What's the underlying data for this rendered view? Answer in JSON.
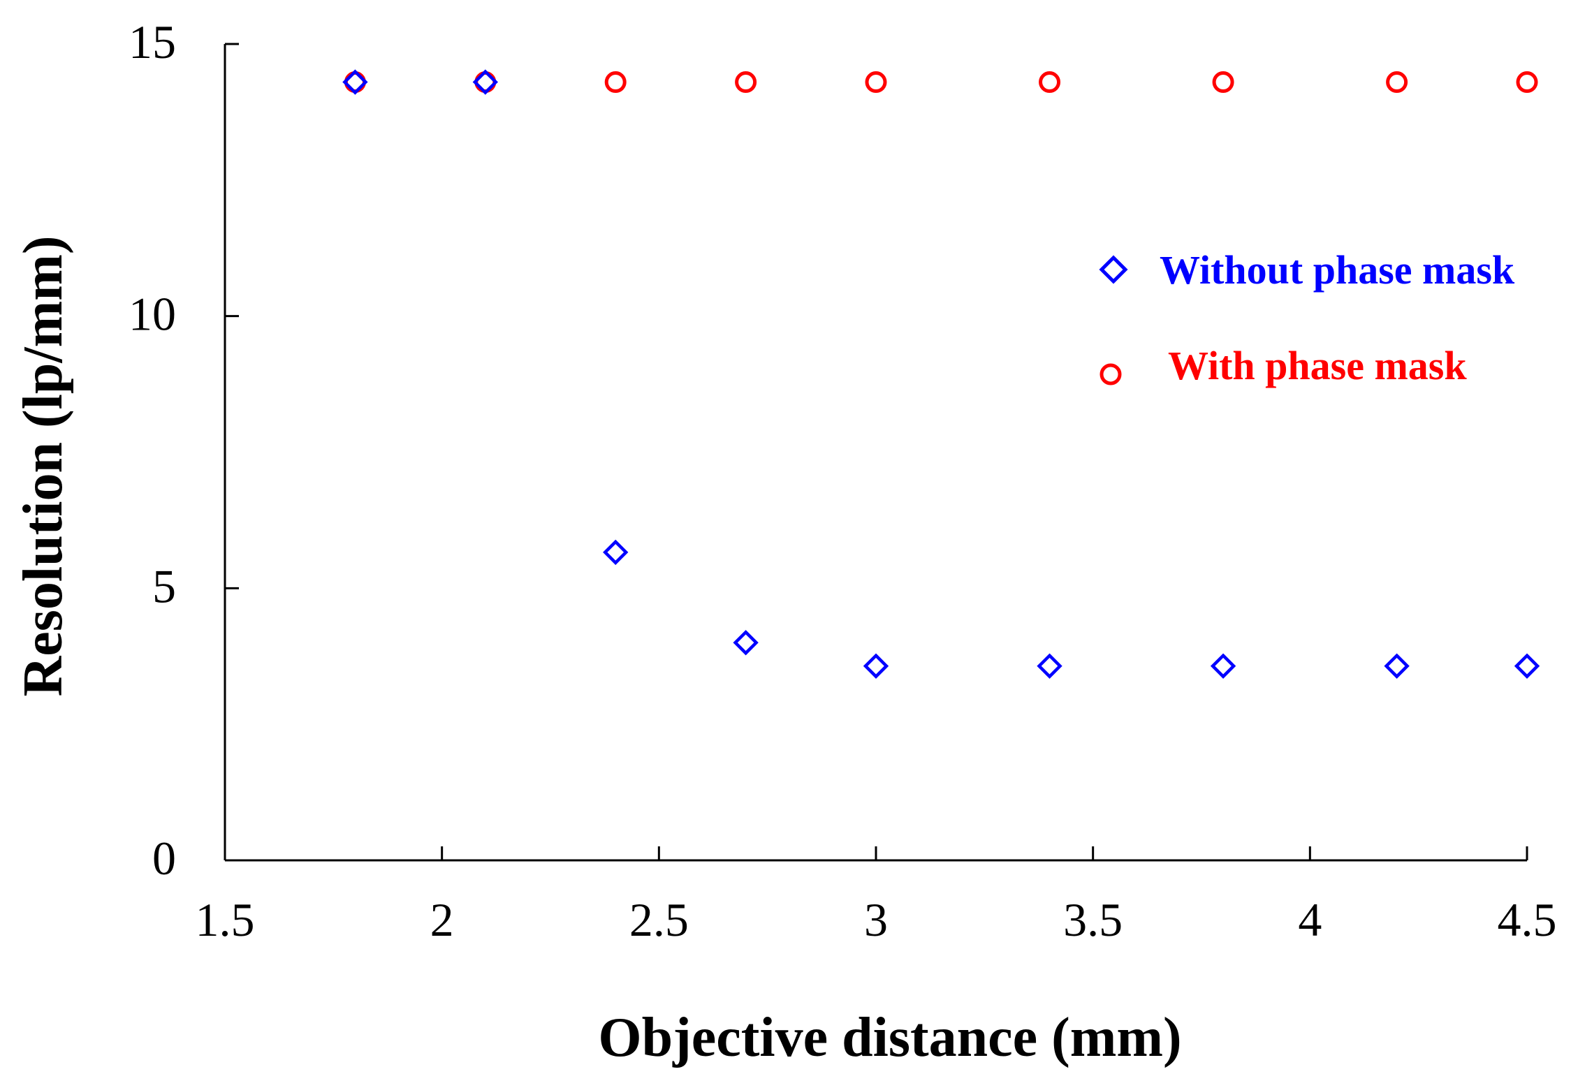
{
  "chart_data": {
    "type": "scatter",
    "title": "",
    "xlabel": "Objective distance (mm)",
    "ylabel": "Resolution (lp/mm)",
    "xlim": [
      1.5,
      4.5
    ],
    "ylim": [
      0,
      15
    ],
    "xticks": [
      1.5,
      2,
      2.5,
      3,
      3.5,
      4,
      4.5
    ],
    "yticks": [
      0,
      5,
      10,
      15
    ],
    "xtick_labels": [
      "1.5",
      "2",
      "2.5",
      "3",
      "3.5",
      "4",
      "4.5"
    ],
    "ytick_labels": [
      "0",
      "5",
      "10",
      "15"
    ],
    "grid": false,
    "legend_position": "right",
    "series": [
      {
        "name": "Without phase mask",
        "marker": "diamond",
        "color": "#0000ff",
        "x": [
          1.8,
          2.1,
          2.4,
          2.7,
          3.0,
          3.4,
          3.8,
          4.2,
          4.5
        ],
        "y": [
          14.3,
          14.3,
          5.66,
          4.0,
          3.57,
          3.57,
          3.57,
          3.57,
          3.57
        ]
      },
      {
        "name": "With phase mask",
        "marker": "circle",
        "color": "#ff0000",
        "x": [
          1.8,
          2.1,
          2.4,
          2.7,
          3.0,
          3.4,
          3.8,
          4.2,
          4.5
        ],
        "y": [
          14.3,
          14.3,
          14.3,
          14.3,
          14.3,
          14.3,
          14.3,
          14.3,
          14.3
        ]
      }
    ]
  }
}
